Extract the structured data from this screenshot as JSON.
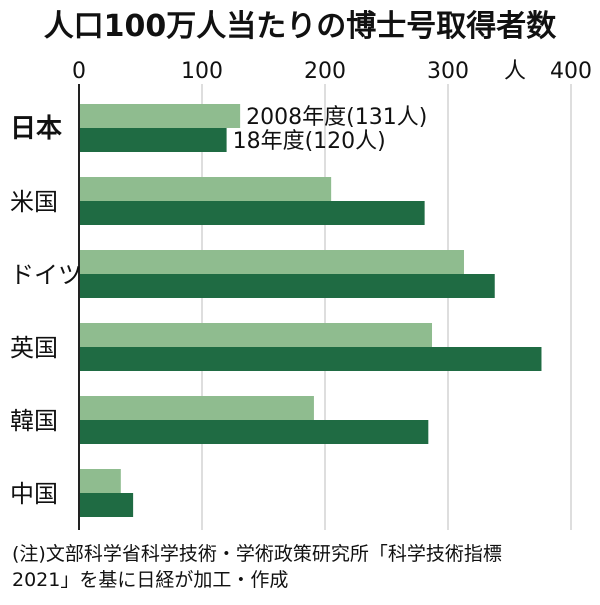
{
  "chart_data": {
    "type": "bar",
    "orientation": "horizontal",
    "title": "人口100万人当たりの博士号取得者数",
    "unit": "人",
    "xlim": [
      0,
      400
    ],
    "xticks": [
      "0",
      "100",
      "200",
      "300",
      "400"
    ],
    "grid": true,
    "categories": [
      "日本",
      "米国",
      "ドイツ",
      "英国",
      "韓国",
      "中国"
    ],
    "series": [
      {
        "name": "2008年度",
        "values": [
          131,
          205,
          313,
          287,
          191,
          34
        ],
        "color": "#8fbc8f"
      },
      {
        "name": "18年度",
        "values": [
          120,
          281,
          338,
          376,
          284,
          44
        ],
        "color": "#1f6b43"
      }
    ],
    "annotations": [
      "2008年度(131人)",
      "18年度(120人)"
    ],
    "source_lines": [
      "(注)文部科学省科学技術・学術政策研究所「科学技術指標",
      "2021」を基に日経が加工・作成"
    ]
  }
}
